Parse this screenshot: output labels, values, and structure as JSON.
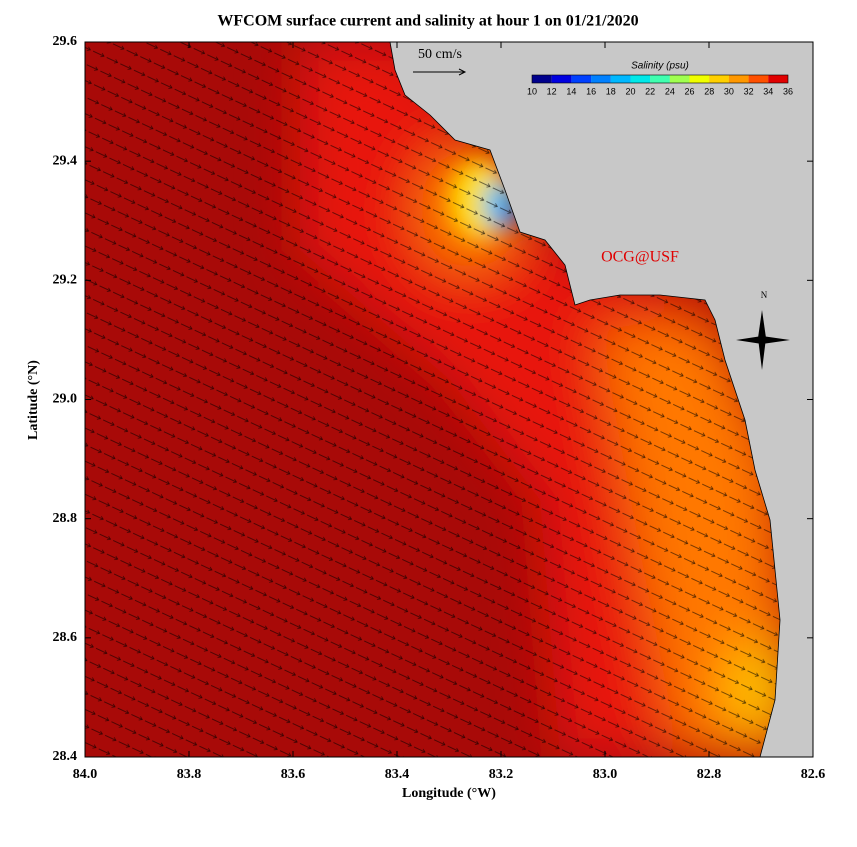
{
  "chart_data": {
    "type": "map",
    "title": "WFCOM surface current and salinity at hour 1 on 01/21/2020",
    "xlabel": "Longitude (°W)",
    "ylabel": "Latitude (°N)",
    "xlim": [
      84,
      82.6
    ],
    "ylim": [
      28.4,
      29.6
    ],
    "xticks": [
      {
        "value": 84,
        "label": "84.0"
      },
      83.8,
      83.6,
      83.4,
      83.2,
      {
        "value": 83,
        "label": "83.0"
      },
      82.8,
      82.6
    ],
    "yticks": [
      28.4,
      28.6,
      28.8,
      {
        "value": 29,
        "label": "29.0"
      },
      29.2,
      29.4,
      29.6
    ],
    "scale_label": "50 cm/s",
    "credit": "OCG@USF",
    "north": "N",
    "colorbar": {
      "title": "Salinity (psu)",
      "ticks": [
        10,
        12,
        14,
        16,
        18,
        20,
        22,
        24,
        26,
        28,
        30,
        32,
        34,
        36
      ],
      "colors": [
        "#00008c",
        "#0000e0",
        "#0040ff",
        "#0080ff",
        "#00b8ff",
        "#00e8e8",
        "#40ffb0",
        "#a0ff50",
        "#f0ff00",
        "#ffd000",
        "#ff9800",
        "#ff5000",
        "#e00000"
      ]
    }
  }
}
